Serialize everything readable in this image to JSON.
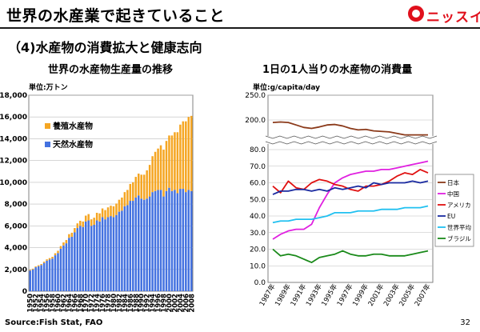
{
  "header": {
    "title": "世界の水産業で起きていること",
    "logo_text": "ニッスイ"
  },
  "section_title": "（4)水産物の消費拡大と健康志向",
  "footer": {
    "source": "Source:Fish Stat, FAO",
    "page_number": "32"
  },
  "colors": {
    "aquaculture": "#f5a623",
    "capture": "#4472e0",
    "rule": "#1a1a1a",
    "logo": "#e0101c"
  },
  "chart_data": [
    {
      "type": "bar",
      "stacked": true,
      "title": "世界の水産物生産量の推移",
      "unit": "単位:万トン",
      "ylim": [
        0,
        18000
      ],
      "yticks": [
        "0",
        "2,000",
        "4,000",
        "6,000",
        "8,000",
        "10,000",
        "12,000",
        "14,000",
        "16,000",
        "18,000"
      ],
      "xtick_labels": [
        "1950",
        "1952",
        "1954",
        "1956",
        "1958",
        "1960",
        "1962",
        "1964",
        "1966",
        "1968",
        "1970",
        "1972",
        "1974",
        "1976",
        "1978",
        "1980",
        "1982",
        "1984",
        "1986",
        "1988",
        "1990",
        "1992",
        "1994",
        "1996",
        "1998",
        "2000",
        "2002",
        "2004",
        "2006",
        "2008"
      ],
      "categories": [
        1950,
        1951,
        1952,
        1953,
        1954,
        1955,
        1956,
        1957,
        1958,
        1959,
        1960,
        1961,
        1962,
        1963,
        1964,
        1965,
        1966,
        1967,
        1968,
        1969,
        1970,
        1971,
        1972,
        1973,
        1974,
        1975,
        1976,
        1977,
        1978,
        1979,
        1980,
        1981,
        1982,
        1983,
        1984,
        1985,
        1986,
        1987,
        1988,
        1989,
        1990,
        1991,
        1992,
        1993,
        1994,
        1995,
        1996,
        1997,
        1998,
        1999,
        2000,
        2001,
        2002,
        2003,
        2004,
        2005,
        2006,
        2007,
        2008
      ],
      "series": [
        {
          "name": "天然水産物",
          "values": [
            1900,
            2000,
            2200,
            2300,
            2400,
            2600,
            2800,
            2900,
            3000,
            3300,
            3500,
            3900,
            4200,
            4400,
            4900,
            5000,
            5400,
            5800,
            6000,
            5900,
            6400,
            6500,
            6000,
            6100,
            6500,
            6400,
            6800,
            6600,
            6800,
            6900,
            6800,
            7000,
            7300,
            7400,
            7800,
            7900,
            8300,
            8300,
            8600,
            8800,
            8500,
            8400,
            8500,
            8700,
            9100,
            9200,
            9300,
            9300,
            8700,
            9200,
            9500,
            9200,
            9300,
            9000,
            9400,
            9400,
            9100,
            9300,
            9200
          ]
        },
        {
          "name": "養殖水産物",
          "values": [
            64,
            70,
            75,
            85,
            95,
            110,
            125,
            140,
            160,
            185,
            210,
            250,
            280,
            300,
            340,
            370,
            400,
            430,
            470,
            500,
            540,
            580,
            600,
            650,
            700,
            750,
            800,
            850,
            900,
            950,
            1000,
            1050,
            1100,
            1200,
            1300,
            1400,
            1550,
            1700,
            1900,
            2000,
            2200,
            2300,
            2600,
            2900,
            3300,
            3600,
            3800,
            4100,
            4300,
            4600,
            4800,
            5100,
            5300,
            5600,
            5900,
            6200,
            6500,
            6700,
            6900
          ]
        }
      ]
    },
    {
      "type": "line",
      "title": "1日の1人当りの水産物の消費量",
      "unit": "単位:g/capita/day",
      "x": [
        1987,
        1988,
        1989,
        1990,
        1991,
        1992,
        1993,
        1994,
        1995,
        1996,
        1997,
        1998,
        1999,
        2000,
        2001,
        2002,
        2003,
        2004,
        2005,
        2006,
        2007
      ],
      "xtick_labels": [
        "1987年",
        "1989年",
        "1991年",
        "1993年",
        "1995年",
        "1997年",
        "1999年",
        "2001年",
        "2003年",
        "2005年",
        "2007年"
      ],
      "yticks_lower": [
        "0.0",
        "10.0",
        "20.0",
        "30.0",
        "40.0",
        "50.0",
        "60.0",
        "70.0",
        "80.0"
      ],
      "yticks_upper": [
        "200.0",
        "250.0"
      ],
      "axis_break": [
        80,
        200
      ],
      "series": [
        {
          "name": "日本",
          "color": "#8b3a1a",
          "values": [
            195,
            196,
            195,
            190,
            185,
            183,
            186,
            190,
            191,
            188,
            183,
            180,
            181,
            178,
            177,
            176,
            173,
            170,
            170,
            170,
            170
          ]
        },
        {
          "name": "中国",
          "color": "#e020e0",
          "values": [
            26,
            29,
            31,
            32,
            32,
            35,
            45,
            53,
            60,
            63,
            65,
            66,
            67,
            67,
            68,
            68,
            69,
            70,
            71,
            72,
            73
          ]
        },
        {
          "name": "アメリカ",
          "color": "#e01010",
          "values": [
            58,
            54,
            61,
            57,
            56,
            60,
            62,
            61,
            59,
            58,
            56,
            55,
            58,
            58,
            59,
            61,
            64,
            66,
            65,
            68,
            66
          ]
        },
        {
          "name": "EU",
          "color": "#1a2aa0",
          "values": [
            53,
            55,
            55,
            56,
            56,
            55,
            56,
            55,
            57,
            56,
            57,
            58,
            57,
            60,
            59,
            60,
            60,
            60,
            61,
            60,
            61
          ]
        },
        {
          "name": "世界平均",
          "color": "#20c0f0",
          "values": [
            36,
            37,
            37,
            38,
            38,
            38,
            39,
            40,
            42,
            42,
            42,
            43,
            43,
            43,
            44,
            44,
            44,
            45,
            45,
            45,
            46
          ]
        },
        {
          "name": "ブラジル",
          "color": "#1a8a1a",
          "values": [
            20,
            16,
            17,
            16,
            14,
            12,
            15,
            16,
            17,
            19,
            17,
            16,
            16,
            17,
            17,
            16,
            16,
            16,
            17,
            18,
            19
          ]
        }
      ]
    }
  ]
}
